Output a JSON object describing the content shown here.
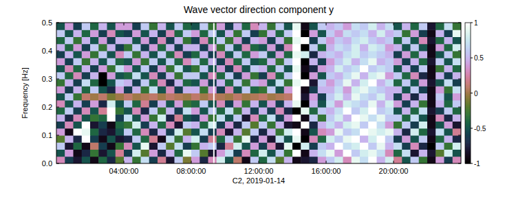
{
  "chart_data": {
    "type": "heatmap",
    "title": "Wave vector direction component y",
    "x_label": "C2, 2019-01-14",
    "y_label": "Frequency [Hz]",
    "xlim": [
      0,
      24
    ],
    "xticks": [
      {
        "value": 4,
        "label": "04:00:00"
      },
      {
        "value": 8,
        "label": "08:00:00"
      },
      {
        "value": 12,
        "label": "12:00:00"
      },
      {
        "value": 16,
        "label": "16:00:00"
      },
      {
        "value": 20,
        "label": "20:00:00"
      }
    ],
    "ylim": [
      0,
      0.5
    ],
    "yticks": [
      {
        "value": 0,
        "label": "0.0"
      },
      0.1,
      0.2,
      0.3,
      0.4,
      0.5
    ],
    "grid": false,
    "x_edges": [
      0,
      0.5,
      1,
      1.5,
      2,
      2.5,
      3,
      3.5,
      4,
      4.5,
      5,
      5.5,
      6,
      6.5,
      7,
      7.5,
      8,
      8.5,
      9,
      9.5,
      10,
      10.5,
      11,
      11.5,
      12,
      12.5,
      13,
      13.5,
      14,
      14.5,
      15,
      15.5,
      16,
      16.5,
      17,
      17.5,
      18,
      18.5,
      19,
      19.5,
      20,
      20.5,
      21,
      21.5,
      22,
      22.5,
      23,
      23.5,
      24
    ],
    "y_edges": [
      0,
      0.025,
      0.05,
      0.075,
      0.1,
      0.125,
      0.15,
      0.175,
      0.2,
      0.225,
      0.25,
      0.275,
      0.3,
      0.325,
      0.35,
      0.375,
      0.4,
      0.425,
      0.45,
      0.475,
      0.5
    ],
    "z": [
      [
        0.3,
        -0.6,
        -0.8,
        -0.5,
        -0.9,
        -0.4,
        -0.7,
        -0.2,
        0.5,
        -0.3,
        0.7,
        -0.6,
        0.2,
        -0.8,
        0.6,
        -0.1,
        0.4,
        -0.7,
        0.3,
        0.8,
        -0.5,
        0.1,
        -0.9,
        0.6,
        -0.4,
        0.7,
        -0.2,
        0.5,
        -0.9,
        -0.8,
        -0.7,
        0.4,
        0.6,
        0.8,
        0.3,
        0.9,
        0.7,
        1,
        0.5,
        0.8,
        0.2,
        -0.5,
        0.6,
        -0.3,
        -0.9,
        0.4,
        -0.6,
        0.3
      ],
      [
        -0.5,
        0.4,
        -0.9,
        -0.7,
        -0.3,
        -0.8,
        -0.5,
        0.2,
        -0.6,
        0.8,
        -0.2,
        0.4,
        -0.7,
        0.5,
        -0.4,
        0.9,
        0.6,
        -0.2,
        -0.8,
        0.4,
        0.7,
        -0.6,
        0.3,
        -0.4,
        0.8,
        -0.5,
        0.6,
        -0.3,
        1,
        -0.9,
        0.5,
        0.7,
        0.9,
        0.4,
        1,
        0.6,
        0.8,
        0.9,
        0.7,
        0.3,
        -0.4,
        0.7,
        -0.8,
        0.5,
        -0.8,
        -0.2,
        0.8,
        -0.5
      ],
      [
        0.6,
        -0.8,
        -0.4,
        -0.9,
        0.1,
        -0.6,
        -0.9,
        -0.3,
        0.3,
        -0.5,
        0.9,
        -0.8,
        0.6,
        -0.2,
        0.7,
        -0.6,
        -0.3,
        0.5,
        0.6,
        -0.7,
        0.2,
        0.8,
        -0.5,
        0.4,
        -0.6,
        0.3,
        -0.8,
        0.9,
        -1,
        0.8,
        -0.6,
        0.6,
        0.5,
        1,
        0.7,
        0.8,
        1,
        0.6,
        0.9,
        0.5,
        0.7,
        -0.6,
        0.3,
        -0.7,
        -1,
        0.6,
        -0.3,
        0.8
      ],
      [
        -0.2,
        0.5,
        -0.7,
        1,
        -0.6,
        -0.9,
        -0.5,
        -0.8,
        -0.7,
        0.6,
        -0.4,
        0.2,
        -0.9,
        0.7,
        -0.3,
        0.5,
        0.8,
        -0.6,
        0.2,
        -0.4,
        0.6,
        -0.3,
        0.9,
        -0.7,
        0.4,
        -0.8,
        0.7,
        -0.5,
        0.9,
        -1,
        0.3,
        -0.4,
        0.8,
        0.6,
        0.9,
        1,
        0.5,
        0.8,
        1,
        0.6,
        -0.6,
        0.4,
        -0.5,
        0.6,
        -0.9,
        -0.4,
        0.5,
        -0.7
      ],
      [
        0.4,
        -0.9,
        1,
        0.9,
        -0.4,
        -0.7,
        -0.8,
        -0.5,
        0.6,
        -0.4,
        0.3,
        -0.7,
        0.5,
        -0.6,
        0.8,
        -0.2,
        -0.5,
        0.7,
        -0.6,
        0.3,
        -0.8,
        0.5,
        -0.2,
        0.6,
        -0.7,
        0.5,
        -0.3,
        0.8,
        1,
        -0.9,
        -0.5,
        0.3,
        0.4,
        0.9,
        0.6,
        0.7,
        1,
        0.9,
        0.8,
        0.9,
        0.5,
        -0.7,
        0.8,
        -0.4,
        -0.8,
        0.7,
        -0.5,
        0.2
      ],
      [
        -0.6,
        0.3,
        -0.5,
        1,
        -0.8,
        -0.6,
        -0.9,
        -0.4,
        -0.3,
        0.8,
        -0.6,
        0.5,
        -0.4,
        0.3,
        -0.8,
        0.6,
        0.5,
        -0.4,
        0.8,
        -0.6,
        0.4,
        -0.7,
        0.6,
        -0.2,
        0.6,
        -0.3,
        0.5,
        -0.8,
        -0.9,
        1,
        -0.7,
        0.5,
        0.7,
        0.5,
        0.8,
        0.9,
        0.6,
        1,
        0.7,
        0.4,
        -0.3,
        0.6,
        -0.6,
        0.8,
        -0.9,
        -0.5,
        0.4,
        -0.8
      ],
      [
        0.5,
        -0.7,
        0.3,
        -0.5,
        -0.3,
        -0.4,
        1,
        -0.6,
        0.7,
        -0.5,
        0.4,
        -0.3,
        0.8,
        -0.7,
        0.2,
        -0.5,
        -0.6,
        0.4,
        -0.3,
        0.7,
        -0.5,
        0.6,
        -0.8,
        0.3,
        -0.4,
        0.7,
        -0.6,
        0.4,
        1,
        -0.9,
        0.6,
        -0.3,
        0.6,
        0.8,
        0.5,
        1,
        0.9,
        0.7,
        0.9,
        0.6,
        0.6,
        -0.4,
        0.7,
        -0.5,
        -0.9,
        0.3,
        -0.7,
        0.5
      ],
      [
        -0.4,
        0.6,
        -0.6,
        0.3,
        -0.5,
        0.2,
        1,
        -0.3,
        -0.5,
        0.3,
        -0.7,
        0.6,
        -0.3,
        0.5,
        -0.6,
        0.7,
        0.4,
        -0.5,
        0.6,
        -0.4,
        0.7,
        -0.3,
        0.5,
        -0.6,
        0.5,
        -0.6,
        0.3,
        -0.7,
        -1,
        0.9,
        -0.4,
        0.6,
        0.5,
        0.7,
        1,
        0.6,
        0.8,
        1,
        0.6,
        0.7,
        -0.5,
        0.5,
        -0.4,
        0.7,
        -0.8,
        -0.6,
        0.6,
        -0.4
      ],
      [
        0.3,
        -0.5,
        0.5,
        -0.6,
        0.4,
        -0.7,
        0.8,
        -0.5,
        0.6,
        -0.4,
        0.2,
        -0.6,
        0.5,
        -0.5,
        0.4,
        -0.3,
        -0.4,
        0.6,
        -0.5,
        0.3,
        -0.6,
        0.4,
        -0.3,
        0.5,
        -0.5,
        0.4,
        -0.6,
        0.5,
        0.9,
        -1,
        0.5,
        -0.5,
        0.7,
        0.4,
        0.8,
        0.7,
        0.6,
        0.9,
        0.5,
        0.8,
        0.4,
        -0.6,
        0.5,
        -0.3,
        -0.9,
        0.5,
        -0.4,
        0.6
      ],
      [
        -0.5,
        0.6,
        -0.3,
        0.1,
        0,
        0.1,
        -0.1,
        0,
        0.1,
        0,
        0.05,
        0.1,
        0,
        0.1,
        0.05,
        0,
        0.1,
        0,
        0.1,
        0.05,
        0,
        0.1,
        0,
        0.05,
        0.1,
        0,
        0.05,
        0.1,
        1,
        -0.8,
        0.4,
        -0.6,
        0.6,
        0.8,
        0.5,
        0.9,
        0.7,
        0.6,
        0.8,
        0.5,
        -0.6,
        0.4,
        -0.7,
        0.5,
        -0.9,
        0.6,
        -0.5,
        0.4
      ],
      [
        0.4,
        -0.6,
        0.5,
        -0.4,
        0.6,
        -0.5,
        -0.7,
        0.4,
        -0.6,
        0.5,
        -0.3,
        0.7,
        -0.5,
        0.3,
        -0.6,
        0.5,
        0.5,
        -0.3,
        0.4,
        -0.6,
        0.3,
        -0.5,
        0.6,
        -0.4,
        -0.3,
        0.6,
        -0.5,
        0.4,
        1,
        -0.9,
        -0.6,
        0.5,
        0.5,
        0.7,
        0.4,
        0.8,
        0.9,
        0.7,
        0.6,
        0.5,
        0.5,
        -0.5,
        0.6,
        -0.6,
        -0.9,
        0.4,
        -0.3,
        0.7
      ],
      [
        -0.3,
        0.5,
        -0.6,
        0.7,
        -0.4,
        -1,
        -0.5,
        0.6,
        0.5,
        -0.6,
        0.6,
        -0.4,
        0.3,
        -0.7,
        0.5,
        -0.4,
        -0.5,
        0.4,
        -0.6,
        0.5,
        -0.4,
        0.6,
        -0.3,
        0.5,
        0.4,
        -0.5,
        0.7,
        -0.3,
        0.9,
        1,
        -0.8,
        0.6,
        0.4,
        0.6,
        0.9,
        0.5,
        0.8,
        1,
        0.5,
        0.7,
        -0.4,
        0.6,
        -0.5,
        0.4,
        -0.8,
        -0.5,
        0.7,
        -0.6
      ],
      [
        0.6,
        -0.4,
        0.3,
        -0.6,
        0.5,
        -1,
        0.4,
        -0.5,
        -0.4,
        0.7,
        -0.5,
        0.3,
        -0.6,
        0.5,
        -0.3,
        0.6,
        0.6,
        -0.5,
        0.3,
        -0.4,
        0.6,
        -0.6,
        0.4,
        -0.3,
        -0.6,
        0.3,
        -0.4,
        0.6,
        1,
        -1,
        0.4,
        -0.5,
        0.6,
        0.5,
        0.7,
        0.9,
        0.5,
        0.8,
        0.9,
        0.4,
        0.6,
        -0.4,
        0.3,
        -0.7,
        -0.9,
        0.5,
        -0.6,
        0.5
      ],
      [
        -0.5,
        0.3,
        -0.4,
        0.5,
        -0.6,
        0.4,
        -0.3,
        0.7,
        0.4,
        -0.5,
        0.6,
        -0.6,
        0.4,
        -0.3,
        0.7,
        -0.5,
        -0.3,
        0.6,
        -0.5,
        0.4,
        -0.6,
        0.3,
        -0.5,
        0.6,
        0.5,
        -0.4,
        0.6,
        -0.5,
        0.9,
        -0.9,
        -0.7,
        0.4,
        0.5,
        0.8,
        0.6,
        0.7,
        1,
        0.6,
        0.7,
        0.6,
        -0.5,
        0.5,
        -0.6,
        0.6,
        -0.9,
        -0.3,
        0.5,
        -0.4
      ],
      [
        0.4,
        -0.6,
        0.6,
        -0.3,
        0.5,
        -0.5,
        0.6,
        -0.4,
        -0.5,
        0.4,
        -0.3,
        0.6,
        -0.5,
        0.6,
        -0.4,
        0.3,
        0.6,
        -0.4,
        0.5,
        -0.6,
        0.3,
        -0.4,
        0.6,
        -0.5,
        -0.4,
        0.5,
        -0.3,
        0.6,
        1,
        -1,
        0.5,
        -0.6,
        0.4,
        0.6,
        0.8,
        0.5,
        0.7,
        0.9,
        0.5,
        0.6,
        0.4,
        -0.6,
        0.5,
        -0.4,
        -0.8,
        0.6,
        -0.5,
        0.7
      ],
      [
        -0.6,
        0.5,
        -0.5,
        0.4,
        -0.3,
        0.6,
        -0.5,
        0.3,
        0.6,
        -0.3,
        0.5,
        -0.5,
        0.6,
        -0.4,
        0.3,
        -0.6,
        -0.4,
        0.5,
        -0.6,
        0.3,
        -0.5,
        0.6,
        -0.4,
        0.4,
        0.6,
        -0.5,
        0.4,
        -0.4,
        0.9,
        0.8,
        -0.7,
        0.5,
        0.6,
        0.5,
        0.7,
        0.8,
        0.6,
        0.7,
        0.6,
        0.5,
        -0.6,
        0.4,
        -0.4,
        0.5,
        -0.9,
        -0.5,
        0.6,
        -0.3
      ],
      [
        0.5,
        -0.4,
        0.4,
        -0.6,
        0.6,
        -0.3,
        0.5,
        -0.6,
        -0.3,
        0.6,
        -0.6,
        0.4,
        -0.4,
        0.5,
        -0.6,
        0.5,
        0.5,
        -0.6,
        0.4,
        -0.3,
        0.6,
        -0.5,
        0.3,
        -0.4,
        -0.5,
        0.4,
        -0.6,
        0.3,
        1,
        -1,
        0.6,
        -0.4,
        0.5,
        0.7,
        0.6,
        0.8,
        0.5,
        0.8,
        0.7,
        0.4,
        0.5,
        -0.5,
        0.6,
        -0.5,
        -0.9,
        0.4,
        -0.4,
        0.8
      ],
      [
        -0.4,
        0.6,
        -0.3,
        0.5,
        -0.5,
        0.4,
        -0.6,
        0.5,
        0.5,
        -0.5,
        0.4,
        -0.6,
        0.3,
        -0.6,
        0.5,
        -0.3,
        -0.6,
        0.3,
        -0.4,
        0.6,
        -0.3,
        0.4,
        -0.6,
        0.5,
        0.4,
        -0.6,
        0.5,
        -0.3,
        0.9,
        1,
        -0.6,
        0.6,
        0.4,
        0.6,
        0.5,
        0.7,
        0.8,
        0.6,
        0.5,
        0.6,
        -0.4,
        0.6,
        -0.5,
        0.3,
        -0.8,
        -0.4,
        0.5,
        -0.5
      ],
      [
        0.6,
        -0.5,
        0.5,
        -0.4,
        0.4,
        -0.6,
        0.3,
        -0.5,
        -0.6,
        0.4,
        -0.5,
        0.5,
        -0.6,
        0.3,
        -0.4,
        0.6,
        0.4,
        -0.4,
        0.6,
        -0.5,
        0.5,
        -0.3,
        0.6,
        -0.6,
        -0.3,
        0.5,
        -0.4,
        0.6,
        1,
        -1,
        0.4,
        -0.5,
        0.6,
        0.4,
        0.7,
        0.6,
        0.7,
        0.5,
        0.8,
        0.5,
        0.6,
        -0.3,
        0.4,
        -0.6,
        -0.9,
        0.5,
        -0.6,
        0.9
      ],
      [
        -0.5,
        0.4,
        -0.6,
        0.6,
        -0.4,
        0.5,
        -0.5,
        0.4,
        0.4,
        -0.6,
        0.6,
        -0.3,
        0.5,
        -0.5,
        0.6,
        -0.4,
        -0.5,
        0.6,
        -0.3,
        0.4,
        -0.6,
        0.5,
        -0.4,
        0.3,
        0.5,
        -0.3,
        0.6,
        -0.5,
        0.9,
        -0.9,
        -0.5,
        0.6,
        0.5,
        0.6,
        0.4,
        0.7,
        0.6,
        0.8,
        0.5,
        0.7,
        -0.5,
        0.5,
        -0.4,
        0.6,
        -0.8,
        -0.4,
        0.7,
        -0.3
      ]
    ],
    "data_gaps": [
      {
        "start": 9.3,
        "end": 9.38
      }
    ],
    "colorbar": {
      "lim": [
        -1,
        1
      ],
      "ticks": [
        1,
        0.5,
        0,
        -0.5,
        -1
      ]
    }
  }
}
